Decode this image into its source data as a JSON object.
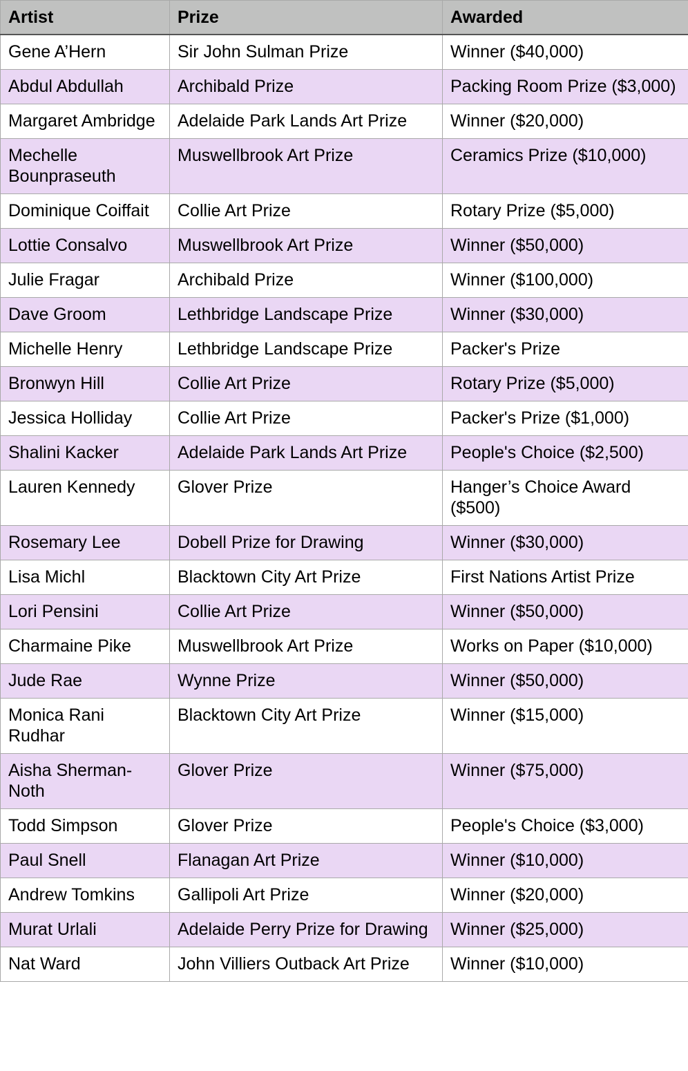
{
  "headers": [
    "Artist",
    "Prize",
    "Awarded"
  ],
  "colors": {
    "header_bg": "#c0c1c0",
    "alt_row_bg": "#ead7f4",
    "border": "#a9a9a9"
  },
  "rows": [
    [
      "Gene A’Hern",
      "Sir John Sulman Prize",
      "Winner ($40,000)"
    ],
    [
      "Abdul Abdullah",
      "Archibald Prize",
      "Packing Room Prize ($3,000)"
    ],
    [
      "Margaret Ambridge",
      "Adelaide Park Lands Art Prize",
      "Winner ($20,000)"
    ],
    [
      "Mechelle Bounpraseuth",
      "Muswellbrook Art Prize",
      "Ceramics Prize ($10,000)"
    ],
    [
      "Dominique Coiffait",
      "Collie Art Prize",
      "Rotary Prize ($5,000)"
    ],
    [
      "Lottie Consalvo",
      "Muswellbrook Art Prize",
      "Winner ($50,000)"
    ],
    [
      "Julie Fragar",
      "Archibald Prize",
      "Winner ($100,000)"
    ],
    [
      "Dave Groom",
      "Lethbridge Landscape Prize",
      "Winner ($30,000)"
    ],
    [
      "Michelle Henry",
      "Lethbridge Landscape Prize",
      "Packer's Prize"
    ],
    [
      "Bronwyn Hill",
      "Collie Art Prize",
      "Rotary Prize ($5,000)"
    ],
    [
      "Jessica Holliday",
      "Collie Art Prize",
      "Packer's Prize ($1,000)"
    ],
    [
      "Shalini Kacker",
      "Adelaide Park Lands Art Prize",
      "People's Choice ($2,500)"
    ],
    [
      "Lauren Kennedy",
      "Glover Prize",
      "Hanger’s Choice Award ($500)"
    ],
    [
      "Rosemary Lee",
      "Dobell Prize for Drawing",
      "Winner ($30,000)"
    ],
    [
      "Lisa Michl",
      "Blacktown City Art Prize",
      "First Nations Artist Prize"
    ],
    [
      "Lori Pensini",
      "Collie Art Prize",
      "Winner ($50,000)"
    ],
    [
      "Charmaine Pike",
      "Muswellbrook Art Prize",
      "Works on Paper ($10,000)"
    ],
    [
      "Jude Rae",
      "Wynne Prize",
      "Winner ($50,000)"
    ],
    [
      "Monica Rani Rudhar",
      "Blacktown City Art Prize",
      "Winner ($15,000)"
    ],
    [
      "Aisha Sherman-Noth",
      "Glover Prize",
      "Winner ($75,000)"
    ],
    [
      "Todd Simpson",
      "Glover Prize",
      "People's Choice ($3,000)"
    ],
    [
      "Paul Snell",
      "Flanagan Art Prize",
      "Winner ($10,000)"
    ],
    [
      "Andrew Tomkins",
      "Gallipoli Art Prize",
      "Winner ($20,000)"
    ],
    [
      "Murat Urlali",
      "Adelaide Perry Prize for Drawing",
      "Winner ($25,000)"
    ],
    [
      "Nat Ward",
      "John Villiers Outback Art Prize",
      "Winner ($10,000)"
    ]
  ]
}
